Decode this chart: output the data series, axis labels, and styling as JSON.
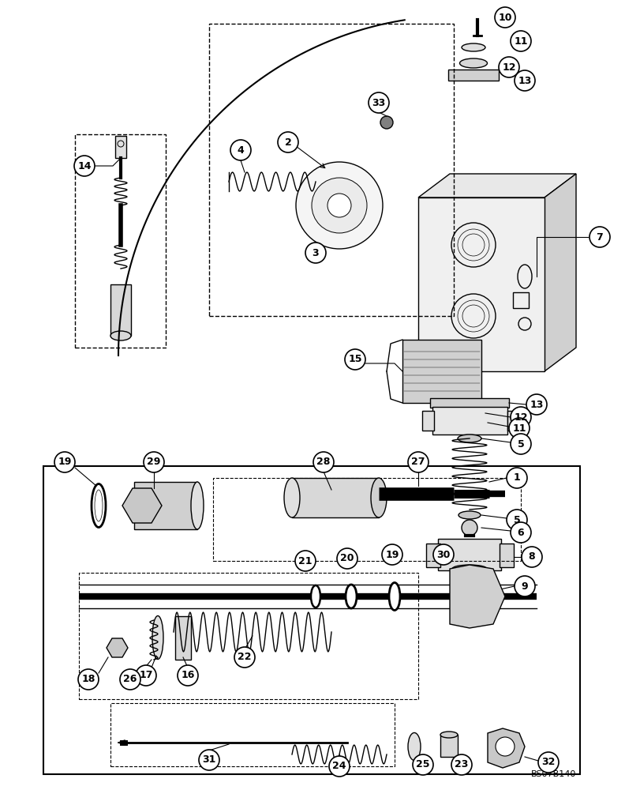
{
  "bg_color": "#ffffff",
  "line_color": "#000000",
  "watermark": "BS07B140",
  "fig_width": 8.12,
  "fig_height": 10.0,
  "dpi": 100
}
